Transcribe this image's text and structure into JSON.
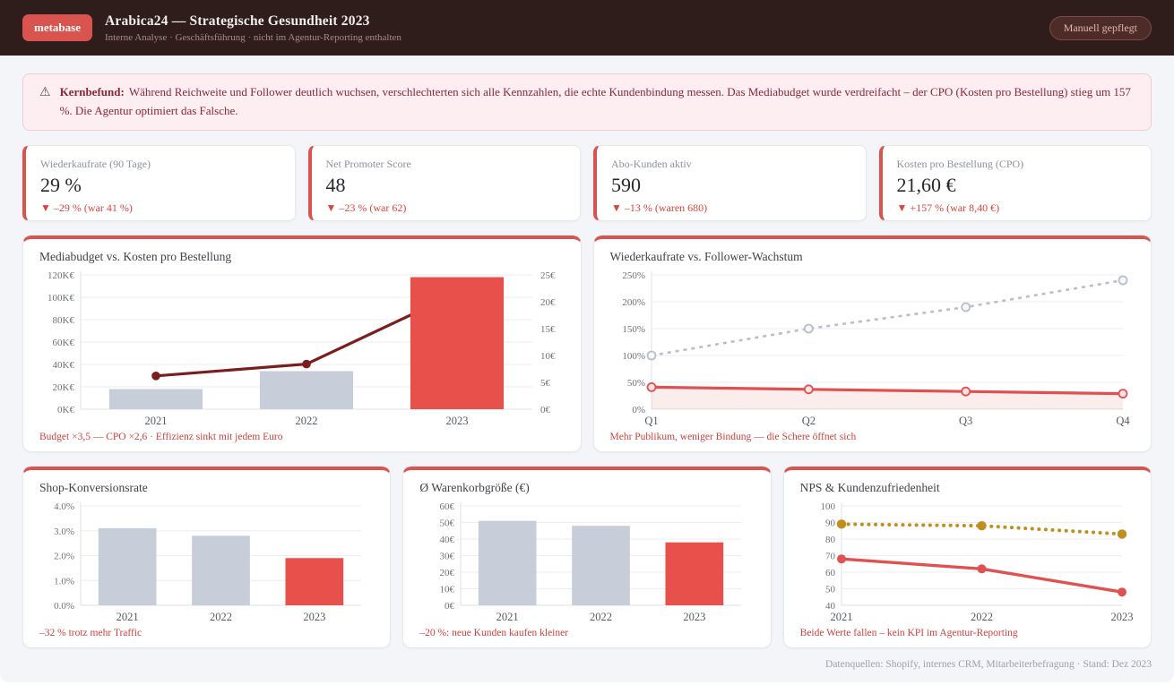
{
  "header": {
    "logo_text": "metabase",
    "title": "Arabica24 — Strategische Gesundheit 2023",
    "subtitle": "Interne Analyse · Geschäftsführung · nicht im Agentur-Reporting enthalten",
    "curation_badge": "Manuell gepflegt"
  },
  "banner": {
    "icon": "⚠",
    "label": "Kernbefund:",
    "text": "Während Reichweite und Follower deutlich wuchsen, verschlechterten sich alle Kennzahlen, die echte Kundenbindung messen. Das Mediabudget wurde verdreifacht – der CPO (Kosten pro Bestellung) stieg um 157 %. Die Agentur optimiert das Falsche."
  },
  "kpis": [
    {
      "label": "Wiederkaufrate (90 Tage)",
      "value": "29 %",
      "delta": "▼  –29 % (war 41 %)"
    },
    {
      "label": "Net Promoter Score",
      "value": "48",
      "delta": "▼  –23 % (war 62)"
    },
    {
      "label": "Abo-Kunden aktiv",
      "value": "590",
      "delta": "▼  –13 % (waren 680)"
    },
    {
      "label": "Kosten pro Bestellung (CPO)",
      "value": "21,60 €",
      "delta": "▼  +157 % (war 8,40 €)"
    }
  ],
  "chart_data": [
    {
      "type": "combo",
      "title": "Mediabudget vs. Kosten pro Bestellung",
      "categories": [
        "2021",
        "2022",
        "2023"
      ],
      "left_axis": {
        "max": 120000,
        "ticks": [
          "0K€",
          "20K€",
          "40K€",
          "60K€",
          "80K€",
          "100K€",
          "120K€"
        ]
      },
      "right_axis": {
        "max": 25,
        "ticks": [
          "0€",
          "5€",
          "10€",
          "15€",
          "20€",
          "25€"
        ]
      },
      "series": [
        {
          "name": "Mediabudget (€)",
          "type": "bar",
          "values": [
            18000,
            34000,
            118000
          ],
          "colors": [
            "#c7cdd9",
            "#c7cdd9",
            "#e8504c"
          ]
        },
        {
          "name": "Kosten pro Bestellung (€)",
          "type": "line",
          "values": [
            6.2,
            8.4,
            21.6
          ],
          "color": "#7b1d1d",
          "width": 3.2,
          "marker_r": 4.8
        }
      ],
      "footnote": "Budget ×3,5 — CPO ×2,6 · Effizienz sinkt mit jedem Euro"
    },
    {
      "type": "line",
      "title": "Wiederkaufrate vs. Follower-Wachstum",
      "x": [
        "Q1",
        "Q2",
        "Q3",
        "Q4"
      ],
      "ylim": [
        0,
        250
      ],
      "yticks": [
        "0%",
        "50%",
        "100%",
        "150%",
        "200%",
        "250%"
      ],
      "series": [
        {
          "name": "Follower-Wachstum",
          "values": [
            100,
            150,
            190,
            240
          ],
          "color": "#b9bfc9",
          "dash": "4 5",
          "width": 2.6,
          "marker": "open",
          "marker_fill": "#f7f8fa",
          "marker_r": 4.5
        },
        {
          "name": "Wiederkaufrate",
          "values": [
            41,
            37,
            33,
            29
          ],
          "color": "#df5050",
          "width": 3.2,
          "area": "rgba(223,80,80,0.10)",
          "marker": "open",
          "marker_fill": "#fbe3e3",
          "marker_r": 4.5
        }
      ],
      "footnote": "Mehr Publikum, weniger Bindung — die Schere öffnet sich"
    },
    {
      "type": "bar",
      "title": "Shop-Konversionsrate",
      "categories": [
        "2021",
        "2022",
        "2023"
      ],
      "values": [
        3.1,
        2.8,
        1.9
      ],
      "colors": [
        "#c7cdd9",
        "#c7cdd9",
        "#e8504c"
      ],
      "ylim": [
        0,
        4
      ],
      "yticks": [
        "0.0%",
        "1.0%",
        "2.0%",
        "3.0%",
        "4.0%"
      ],
      "footnote": "–32 % trotz mehr Traffic"
    },
    {
      "type": "bar",
      "title": "Ø Warenkorbgröße (€)",
      "categories": [
        "2021",
        "2022",
        "2023"
      ],
      "values": [
        51,
        48,
        38
      ],
      "colors": [
        "#c7cdd9",
        "#c7cdd9",
        "#e8504c"
      ],
      "ylim": [
        0,
        60
      ],
      "yticks": [
        "0€",
        "10€",
        "20€",
        "30€",
        "40€",
        "50€",
        "60€"
      ],
      "footnote": "–20 %: neue Kunden kaufen kleiner"
    },
    {
      "type": "line",
      "title": "NPS & Kundenzufriedenheit",
      "x": [
        "2021",
        "2022",
        "2023"
      ],
      "ylim": [
        40,
        100
      ],
      "yticks": [
        "40",
        "50",
        "60",
        "70",
        "80",
        "90",
        "100"
      ],
      "series": [
        {
          "name": "Kundenzufriedenheit",
          "values": [
            89,
            88,
            83
          ],
          "color": "#c0901f",
          "dash": "0.1 7.5",
          "linecap": "round",
          "width": 4,
          "marker": "filled",
          "marker_r": 5.2
        },
        {
          "name": "NPS",
          "values": [
            68,
            62,
            48
          ],
          "color": "#e05252",
          "width": 3.4,
          "marker": "filled",
          "marker_r": 5
        }
      ],
      "footnote": "Beide Werte fallen – kein KPI im Agentur-Reporting"
    }
  ],
  "footer": {
    "note": "Datenquellen: Shopify, internes CRM, Mitarbeiterbefragung · Stand: Dez 2023"
  },
  "colors": {
    "accent": "#d9534f",
    "header_bg": "#2e1d1a",
    "banner_bg": "#fdeef1",
    "bar_neutral": "#c7cdd9",
    "bar_alert": "#e8504c",
    "line_dark_red": "#7b1d1d",
    "line_red": "#e05252",
    "line_gray_dotted": "#b9bfc9",
    "line_gold_dotted": "#c0901f"
  }
}
